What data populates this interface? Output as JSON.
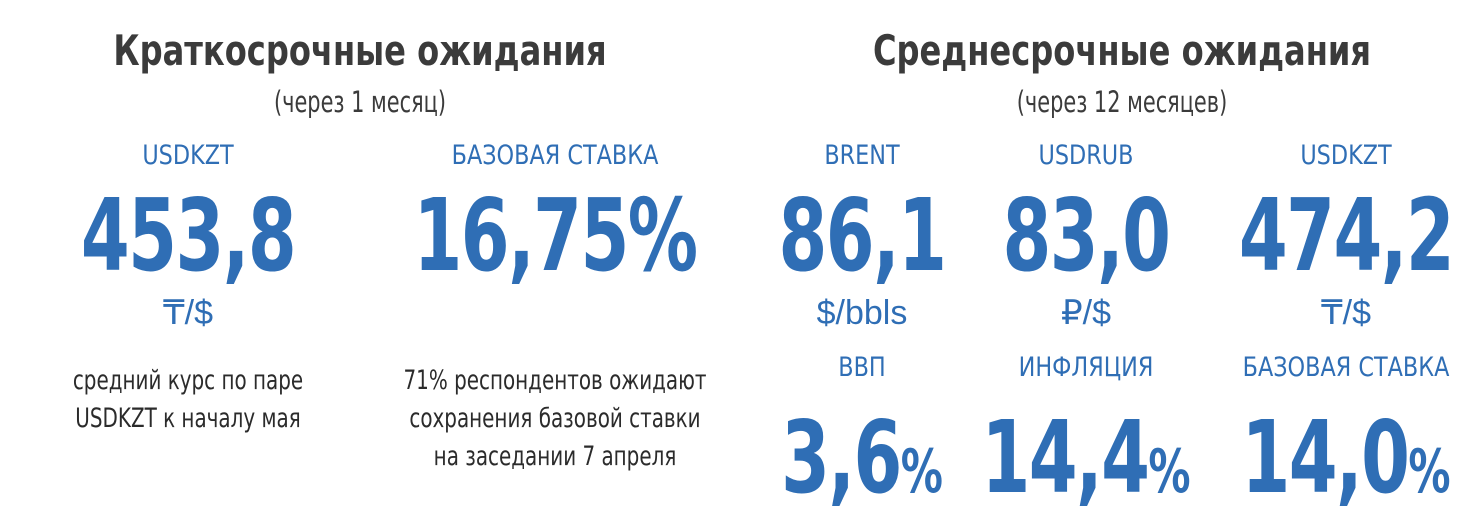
{
  "sections": [
    {
      "title": "Краткосрочные ожидания",
      "subtitle": "(через 1 месяц)",
      "rows": [
        [
          {
            "label": "USDKZT",
            "value": "453,8",
            "unit": "₸/$",
            "note": [
              "средний курс по паре",
              "USDKZT к началу мая"
            ]
          },
          {
            "label": "БАЗОВАЯ СТАВКА",
            "value": "16,75%",
            "note": [
              "71% респондентов ожидают",
              "сохранения базовой ставки",
              "на заседании 7 апреля"
            ]
          }
        ]
      ]
    },
    {
      "title": "Среднесрочные ожидания",
      "subtitle": "(через 12 месяцев)",
      "rows": [
        [
          {
            "label": "BRENT",
            "value": "86,1",
            "unit": "$/bbls"
          },
          {
            "label": "USDRUB",
            "value": "83,0",
            "unit": "₽/$"
          },
          {
            "label": "USDKZT",
            "value": "474,2",
            "unit": "₸/$"
          }
        ],
        [
          {
            "label": "ВВП",
            "value": "3,6",
            "unit": "%"
          },
          {
            "label": "ИНФЛЯЦИЯ",
            "value": "14,4",
            "unit": "%"
          },
          {
            "label": "БАЗОВАЯ СТАВКА",
            "value": "14,0",
            "unit": "%"
          }
        ]
      ]
    }
  ]
}
